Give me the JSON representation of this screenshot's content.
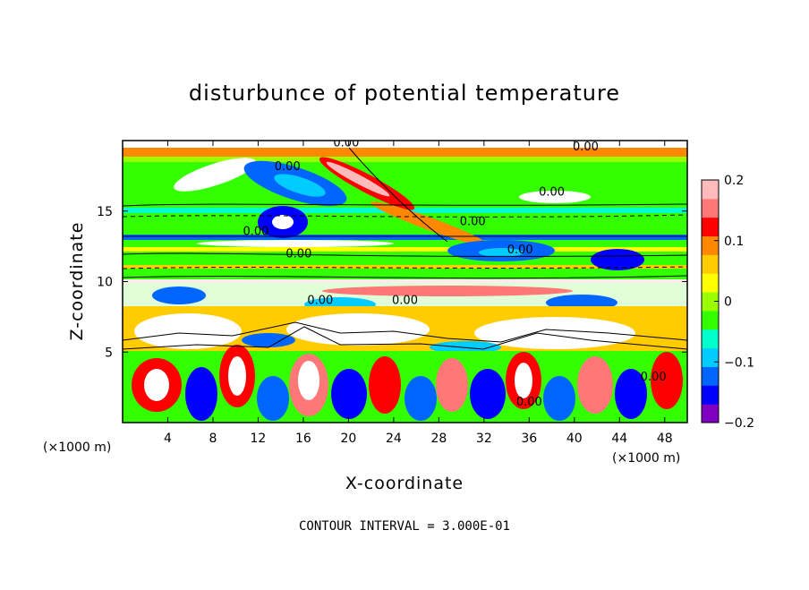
{
  "chart_data": {
    "type": "heatmap",
    "title": "disturbunce of potential temperature",
    "xlabel": "X-coordinate",
    "ylabel": "Z-coordinate",
    "x_unit_left": "(×1000 m)",
    "x_unit_right": "(×1000 m)",
    "xlim": [
      0,
      50
    ],
    "ylim": [
      0,
      20
    ],
    "x_ticks": [
      4,
      8,
      12,
      16,
      20,
      24,
      28,
      32,
      36,
      40,
      44,
      48
    ],
    "x_tick_labels": [
      "4",
      "8",
      "12",
      "16",
      "20",
      "24",
      "28",
      "32",
      "36",
      "40",
      "44",
      "48"
    ],
    "y_ticks": [
      5,
      10,
      15
    ],
    "y_tick_labels": [
      "5",
      "10",
      "15"
    ],
    "colorbar": {
      "min": -0.2,
      "max": 0.2,
      "ticks": [
        0.2,
        0.1,
        0,
        -0.1,
        -0.2
      ],
      "tick_labels": [
        "0.2",
        "0.1",
        "0",
        "−0.1",
        "−0.2"
      ],
      "colors": [
        "#7f00bf",
        "#0000ff",
        "#0066ff",
        "#00ccff",
        "#00ffcc",
        "#33ff00",
        "#99ff00",
        "#ffff00",
        "#ffcc00",
        "#ff8800",
        "#ff0000",
        "#ff7777",
        "#ffbbbb"
      ]
    },
    "contour_labels": [
      {
        "text": "0.00",
        "x": 19.8,
        "z": 19.6
      },
      {
        "text": "0.00",
        "x": 14.6,
        "z": 17.9
      },
      {
        "text": "0.00",
        "x": 41.0,
        "z": 19.3
      },
      {
        "text": "0.00",
        "x": 38.0,
        "z": 16.1
      },
      {
        "text": "0.00",
        "x": 11.8,
        "z": 13.3
      },
      {
        "text": "0.00",
        "x": 31.0,
        "z": 14.0
      },
      {
        "text": "0.00",
        "x": 15.6,
        "z": 11.7
      },
      {
        "text": "0.00",
        "x": 35.2,
        "z": 12.0
      },
      {
        "text": "0.00",
        "x": 17.5,
        "z": 8.4
      },
      {
        "text": "0.00",
        "x": 25.0,
        "z": 8.4
      },
      {
        "text": "0.00",
        "x": 36.0,
        "z": 1.2
      },
      {
        "text": "0.00",
        "x": 47.0,
        "z": 3.0
      }
    ],
    "contour_interval_text": "CONTOUR INTERVAL = 3.000E-01"
  }
}
